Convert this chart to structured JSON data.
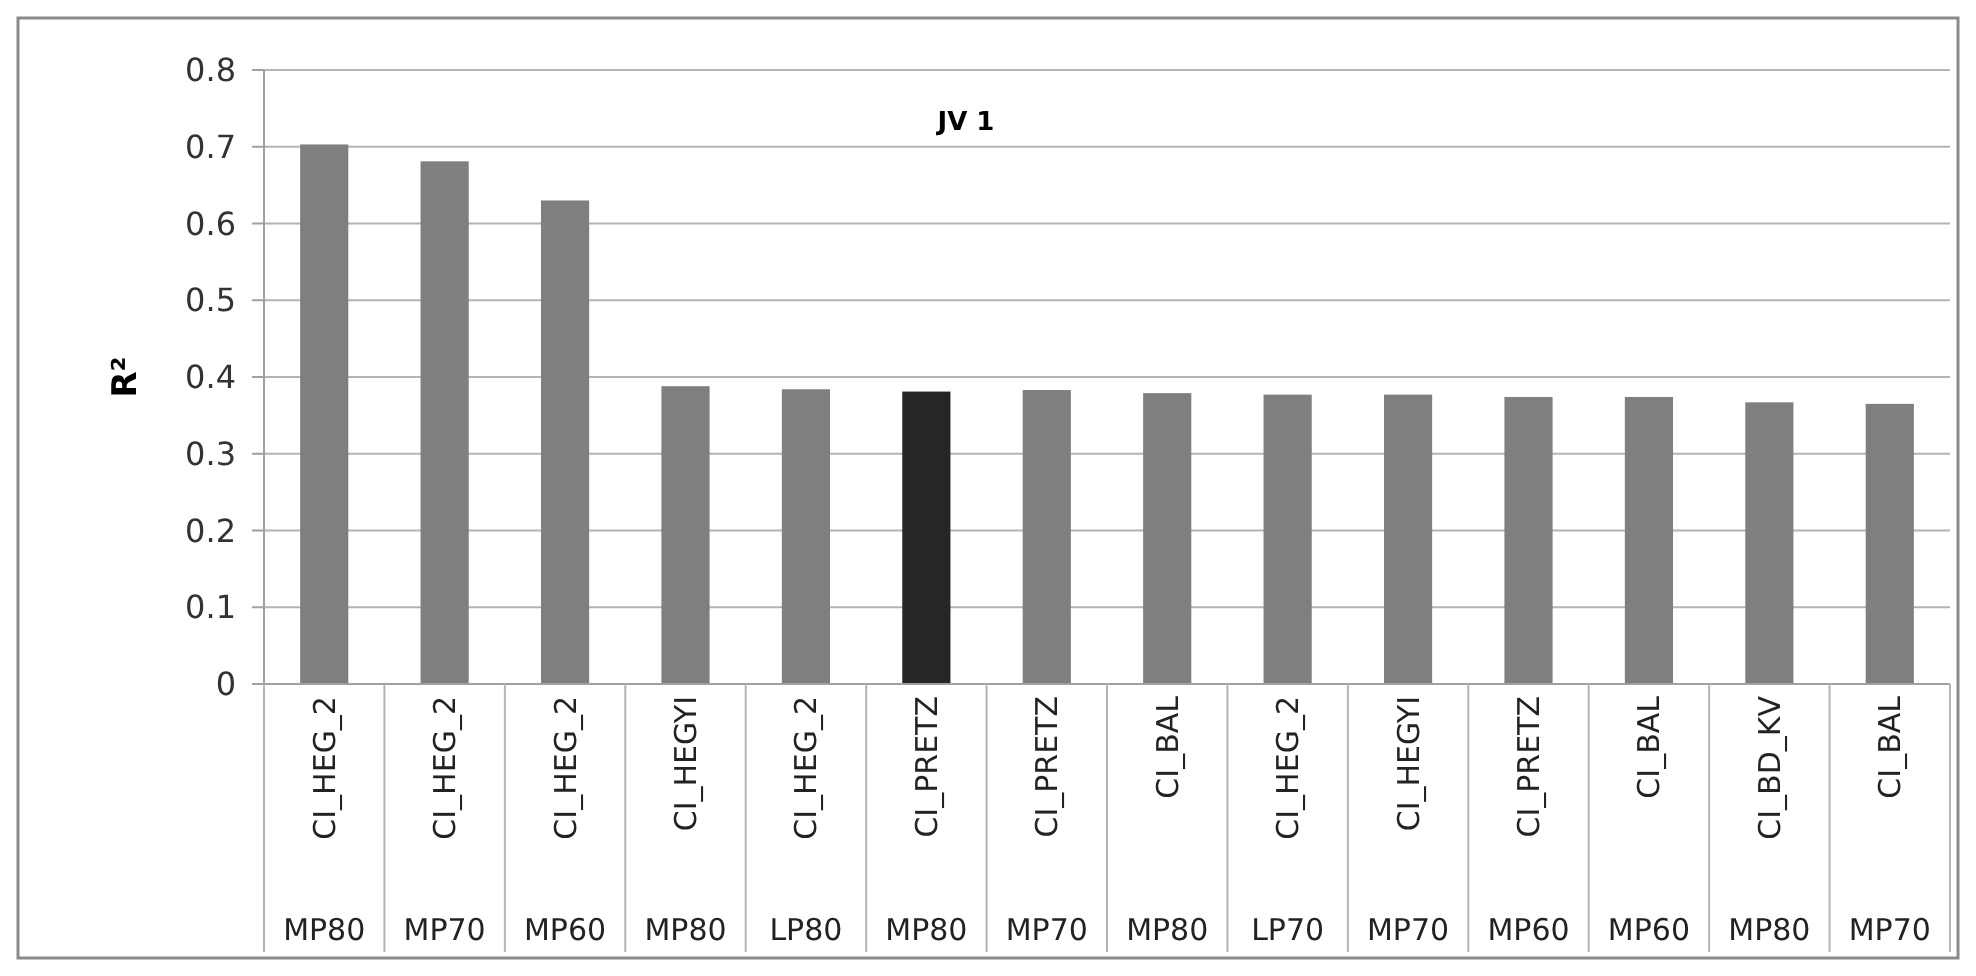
{
  "chart_data": {
    "type": "bar",
    "title": "JV 1",
    "ylabel": "R²",
    "categories": [
      "CI_HEG_2\nMP80",
      "CI_HEG_2\nMP70",
      "CI_HEG_2\nMP60",
      "CI_HEGYI\nMP80",
      "CI_HEG_2\nLP80",
      "CI_PRETZ\nMP80",
      "CI_PRETZ\nMP70",
      "CI_BAL\nMP80",
      "CI_HEG_2\nLP70",
      "CI_HEGYI\nMP70",
      "CI_PRETZ\nMP60",
      "CI_BAL\nMP60",
      "CI_BD_KV\nMP80",
      "CI_BAL\nMP70"
    ],
    "values": [
      0.703,
      0.681,
      0.63,
      0.388,
      0.384,
      0.381,
      0.383,
      0.379,
      0.377,
      0.377,
      0.374,
      0.374,
      0.367,
      0.365
    ],
    "colors": [
      "#7f7f7f",
      "#7f7f7f",
      "#7f7f7f",
      "#7f7f7f",
      "#7f7f7f",
      "#262626",
      "#7f7f7f",
      "#7f7f7f",
      "#7f7f7f",
      "#7f7f7f",
      "#7f7f7f",
      "#7f7f7f",
      "#7f7f7f",
      "#7f7f7f"
    ],
    "ylim": [
      0,
      0.8
    ],
    "yticks": [
      0,
      0.1,
      0.2,
      0.3,
      0.4,
      0.5,
      0.6,
      0.7,
      0.8
    ],
    "grid": "y"
  }
}
